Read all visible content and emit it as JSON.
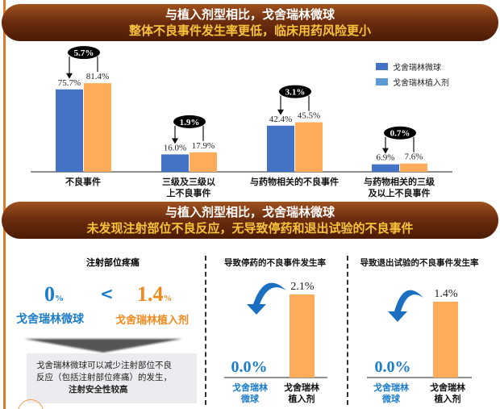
{
  "banner1": {
    "line1": "与植入剂型相比，戈舍瑞林微球",
    "line2": "整体不良事件发生率更低，临床用药风险更小"
  },
  "banner2": {
    "line1": "与植入剂型相比，戈舍瑞林微球",
    "line2": "未发现注射部位不良反应，无导致停药和退出试验的不良事件"
  },
  "colors": {
    "microsphere": "#4472c4",
    "implant": "#ffac5a",
    "blue_text": "#1a7cc8",
    "orange_text": "#f08a1e"
  },
  "chart_data": [
    {
      "type": "bar",
      "categories": [
        [
          "不良事件"
        ],
        [
          "三级及三级以",
          "上不良事件"
        ],
        [
          "与药物相关的不良事件"
        ],
        [
          "与药物相关的三级",
          "及以上不良事件"
        ]
      ],
      "series": [
        {
          "name": "戈舍瑞林微球",
          "values": [
            75.7,
            16.0,
            42.4,
            6.9
          ],
          "labels": [
            "75.7%",
            "16.0%",
            "42.4%",
            "6.9%"
          ]
        },
        {
          "name": "戈舍瑞林植入剂",
          "values": [
            81.4,
            17.9,
            45.5,
            7.6
          ],
          "labels": [
            "81.4%",
            "17.9%",
            "45.5%",
            "7.6%"
          ]
        }
      ],
      "differences": [
        "5.7%",
        "1.9%",
        "3.1%",
        "0.7%"
      ],
      "legend": "top-right",
      "ylim": [
        0,
        85
      ]
    },
    {
      "type": "bar",
      "title": "导致停药的不良事件发生率",
      "categories": [
        "戈舍瑞林微球",
        "戈舍瑞林植入剂"
      ],
      "values": [
        0.0,
        2.1
      ],
      "labels": [
        "0.0%",
        "2.1%"
      ],
      "cat_lines": [
        [
          "戈舍瑞林",
          "微球"
        ],
        [
          "戈舍瑞林",
          "植入剂"
        ]
      ]
    },
    {
      "type": "bar",
      "title": "导致退出试验的不良事件发生率",
      "categories": [
        "戈舍瑞林微球",
        "戈舍瑞林植入剂"
      ],
      "values": [
        0.0,
        1.4
      ],
      "labels": [
        "0.0%",
        "1.4%"
      ],
      "cat_lines": [
        [
          "戈舍瑞林",
          "微球"
        ],
        [
          "戈舍瑞林",
          "植入剂"
        ]
      ]
    }
  ],
  "pain": {
    "title": "注射部位疼痛",
    "micro_value": "0",
    "micro_unit": "%",
    "lt": "<",
    "implant_value": "1.4",
    "implant_unit": "%",
    "micro_label": "戈舍瑞林微球",
    "implant_label": "戈舍瑞林植入剂",
    "note_line1": "戈舍瑞林微球可以减少注射部位不良",
    "note_line2": "反应（包括注射部位疼痛）的发生，",
    "note_line3": "注射安全性较高"
  }
}
